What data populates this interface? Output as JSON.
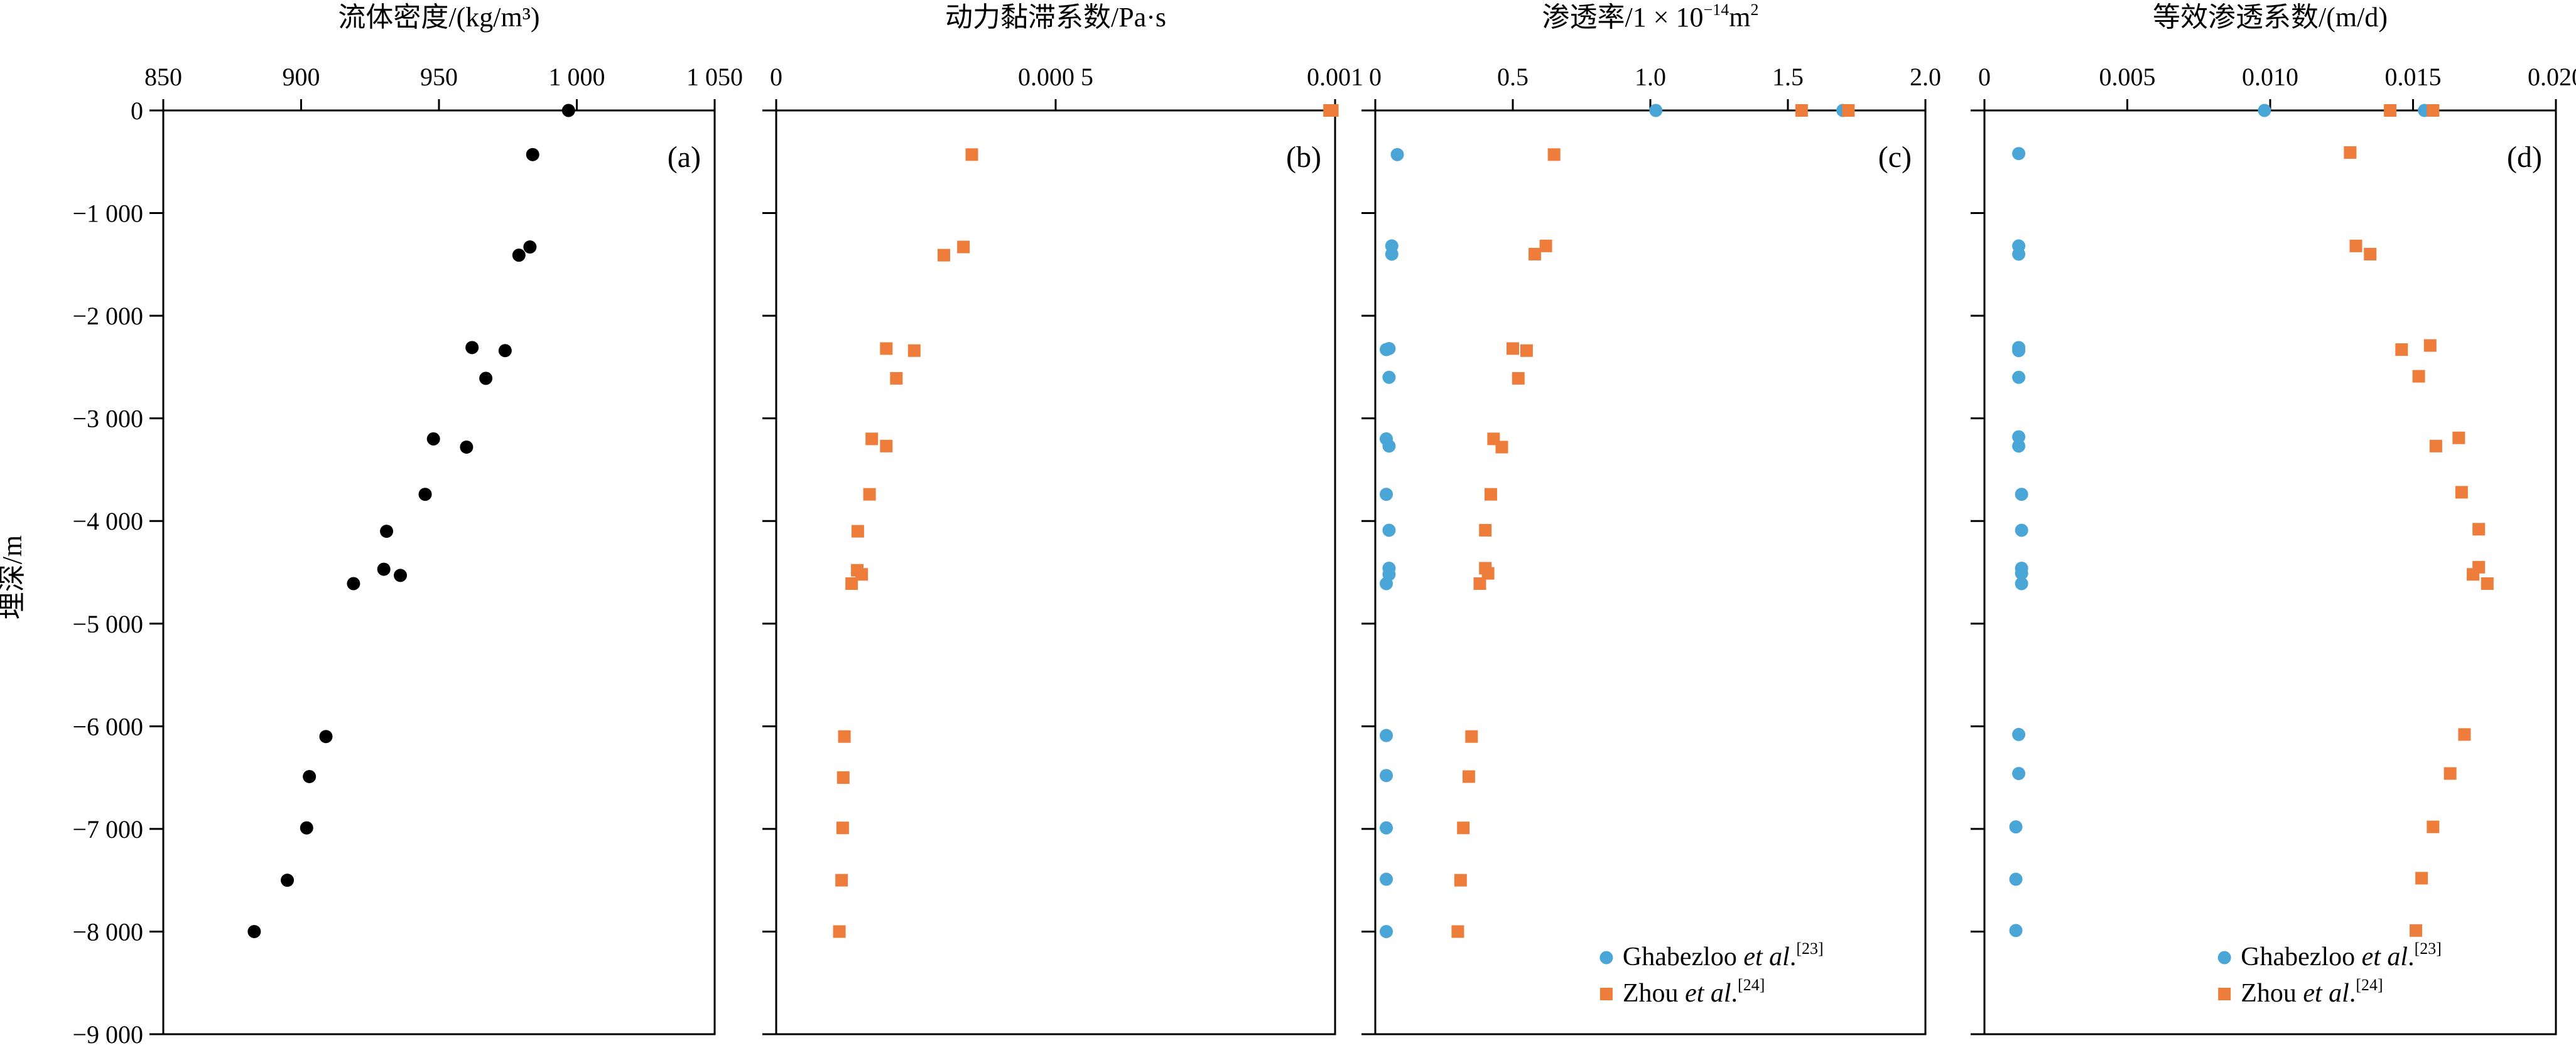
{
  "colors": {
    "black_series": "#000000",
    "blue_series": "#4aa6d6",
    "orange_series": "#ee7d3b",
    "axis": "#000000"
  },
  "y_axis": {
    "label": "埋深/m",
    "ylim": [
      -9000,
      0
    ],
    "ticks": [
      0,
      -1000,
      -2000,
      -3000,
      -4000,
      -5000,
      -6000,
      -7000,
      -8000,
      -9000
    ],
    "tick_labels": [
      "0",
      "−1 000",
      "−2 000",
      "−3 000",
      "−4 000",
      "−5 000",
      "−6 000",
      "−7 000",
      "−8 000",
      "−9 000"
    ]
  },
  "chart_data": [
    {
      "type": "scatter",
      "panel_label": "(a)",
      "title": "流体密度/(kg/m³)",
      "xlim": [
        850,
        1050
      ],
      "ylim": [
        -9000,
        0
      ],
      "x_ticks": [
        850,
        900,
        950,
        1000,
        1050
      ],
      "x_tick_labels": [
        "850",
        "900",
        "950",
        "1 000",
        "1 050"
      ],
      "grid": false,
      "series": [
        {
          "color": "#000000",
          "marker": "circle",
          "points": [
            [
              997,
              0
            ],
            [
              984,
              -430
            ],
            [
              983,
              -1330
            ],
            [
              979,
              -1410
            ],
            [
              974,
              -2340
            ],
            [
              962,
              -2310
            ],
            [
              967,
              -2610
            ],
            [
              960,
              -3280
            ],
            [
              948,
              -3200
            ],
            [
              945,
              -3740
            ],
            [
              931,
              -4100
            ],
            [
              930,
              -4470
            ],
            [
              936,
              -4530
            ],
            [
              919,
              -4610
            ],
            [
              909,
              -6100
            ],
            [
              903,
              -6490
            ],
            [
              902,
              -6990
            ],
            [
              895,
              -7500
            ],
            [
              883,
              -8000
            ]
          ]
        }
      ]
    },
    {
      "type": "scatter",
      "panel_label": "(b)",
      "title": "动力黏滞系数/Pa·s",
      "xlim": [
        0,
        0.001
      ],
      "ylim": [
        -9000,
        0
      ],
      "x_ticks": [
        0,
        0.0005,
        0.001
      ],
      "x_tick_labels": [
        "0",
        "0.000 5",
        "0.001"
      ],
      "grid": false,
      "series": [
        {
          "color": "#ee7d3b",
          "marker": "square",
          "points": [
            [
              0.000995,
              0
            ],
            [
              0.00099,
              0
            ],
            [
              0.00035,
              -430
            ],
            [
              0.000335,
              -1330
            ],
            [
              0.0003,
              -1410
            ],
            [
              0.000247,
              -2340
            ],
            [
              0.000197,
              -2320
            ],
            [
              0.000215,
              -2610
            ],
            [
              0.000197,
              -3270
            ],
            [
              0.000171,
              -3200
            ],
            [
              0.000167,
              -3740
            ],
            [
              0.000146,
              -4100
            ],
            [
              0.000145,
              -4480
            ],
            [
              0.000153,
              -4520
            ],
            [
              0.000135,
              -4610
            ],
            [
              0.000122,
              -6100
            ],
            [
              0.00012,
              -6500
            ],
            [
              0.000119,
              -6990
            ],
            [
              0.000117,
              -7500
            ],
            [
              0.000113,
              -8000
            ]
          ]
        }
      ]
    },
    {
      "type": "scatter",
      "panel_label": "(c)",
      "title": "渗透率/1 × 10",
      "title_sup": "−14",
      "title_suffix": "m",
      "title_suffix_sup": "2",
      "xlim": [
        0,
        2.0
      ],
      "ylim": [
        -9000,
        0
      ],
      "x_ticks": [
        0,
        0.5,
        1.0,
        1.5,
        2.0
      ],
      "x_tick_labels": [
        "0",
        "0.5",
        "1.0",
        "1.5",
        "2.0"
      ],
      "grid": false,
      "legend_position": "bottom-right",
      "series": [
        {
          "name": "Ghabezloo et al.",
          "name_main": "Ghabezloo ",
          "name_italic": "et al",
          "name_end": ".",
          "name_ref": "[23]",
          "color": "#4aa6d6",
          "marker": "circle",
          "points": [
            [
              1.02,
              0
            ],
            [
              1.7,
              0
            ],
            [
              0.08,
              -430
            ],
            [
              0.06,
              -1320
            ],
            [
              0.06,
              -1400
            ],
            [
              0.05,
              -2320
            ],
            [
              0.04,
              -2330
            ],
            [
              0.05,
              -2600
            ],
            [
              0.04,
              -3200
            ],
            [
              0.05,
              -3270
            ],
            [
              0.04,
              -3740
            ],
            [
              0.05,
              -4090
            ],
            [
              0.05,
              -4460
            ],
            [
              0.05,
              -4520
            ],
            [
              0.04,
              -4610
            ],
            [
              0.04,
              -6090
            ],
            [
              0.04,
              -6480
            ],
            [
              0.04,
              -6990
            ],
            [
              0.04,
              -7490
            ],
            [
              0.04,
              -8000
            ]
          ]
        },
        {
          "name": "Zhou et al.",
          "name_main": "Zhou ",
          "name_italic": "et al",
          "name_end": ".",
          "name_ref": "[24]",
          "color": "#ee7d3b",
          "marker": "square",
          "points": [
            [
              1.55,
              0
            ],
            [
              1.72,
              0
            ],
            [
              0.65,
              -430
            ],
            [
              0.62,
              -1320
            ],
            [
              0.58,
              -1400
            ],
            [
              0.5,
              -2320
            ],
            [
              0.55,
              -2340
            ],
            [
              0.52,
              -2610
            ],
            [
              0.43,
              -3200
            ],
            [
              0.46,
              -3280
            ],
            [
              0.42,
              -3740
            ],
            [
              0.4,
              -4090
            ],
            [
              0.4,
              -4460
            ],
            [
              0.41,
              -4510
            ],
            [
              0.38,
              -4610
            ],
            [
              0.35,
              -6100
            ],
            [
              0.34,
              -6490
            ],
            [
              0.32,
              -6990
            ],
            [
              0.31,
              -7500
            ],
            [
              0.3,
              -8000
            ]
          ]
        }
      ]
    },
    {
      "type": "scatter",
      "panel_label": "(d)",
      "title": "等效渗透系数/(m/d)",
      "xlim": [
        0,
        0.02
      ],
      "ylim": [
        -9000,
        0
      ],
      "x_ticks": [
        0,
        0.005,
        0.01,
        0.015,
        0.02
      ],
      "x_tick_labels": [
        "0",
        "0.005",
        "0.010",
        "0.015",
        "0.020"
      ],
      "grid": false,
      "legend_position": "bottom-right",
      "series": [
        {
          "name": "Ghabezloo et al.",
          "name_main": "Ghabezloo ",
          "name_italic": "et al",
          "name_end": ".",
          "name_ref": "[23]",
          "color": "#4aa6d6",
          "marker": "circle",
          "points": [
            [
              0.0098,
              0
            ],
            [
              0.0154,
              0
            ],
            [
              0.0012,
              -420
            ],
            [
              0.0012,
              -1320
            ],
            [
              0.0012,
              -1400
            ],
            [
              0.0012,
              -2310
            ],
            [
              0.0012,
              -2340
            ],
            [
              0.0012,
              -2600
            ],
            [
              0.0012,
              -3180
            ],
            [
              0.0012,
              -3270
            ],
            [
              0.0013,
              -3740
            ],
            [
              0.0013,
              -4090
            ],
            [
              0.0013,
              -4460
            ],
            [
              0.0013,
              -4510
            ],
            [
              0.0013,
              -4610
            ],
            [
              0.0012,
              -6080
            ],
            [
              0.0012,
              -6460
            ],
            [
              0.0011,
              -6980
            ],
            [
              0.0011,
              -7490
            ],
            [
              0.0011,
              -7990
            ]
          ]
        },
        {
          "name": "Zhou et al.",
          "name_main": "Zhou ",
          "name_italic": "et al",
          "name_end": ".",
          "name_ref": "[24]",
          "color": "#ee7d3b",
          "marker": "square",
          "points": [
            [
              0.0142,
              0
            ],
            [
              0.0157,
              0
            ],
            [
              0.0128,
              -410
            ],
            [
              0.013,
              -1320
            ],
            [
              0.0135,
              -1400
            ],
            [
              0.0146,
              -2330
            ],
            [
              0.0156,
              -2290
            ],
            [
              0.0152,
              -2590
            ],
            [
              0.0158,
              -3270
            ],
            [
              0.0166,
              -3190
            ],
            [
              0.0167,
              -3720
            ],
            [
              0.0173,
              -4080
            ],
            [
              0.0173,
              -4450
            ],
            [
              0.0171,
              -4520
            ],
            [
              0.0176,
              -4610
            ],
            [
              0.0168,
              -6080
            ],
            [
              0.0163,
              -6460
            ],
            [
              0.0157,
              -6980
            ],
            [
              0.0153,
              -7480
            ],
            [
              0.0151,
              -7990
            ]
          ]
        }
      ]
    }
  ]
}
